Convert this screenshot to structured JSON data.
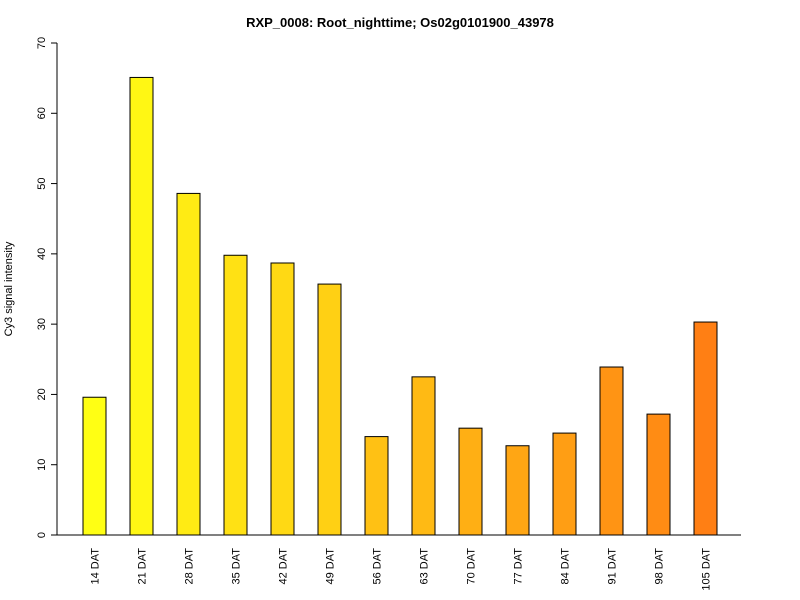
{
  "chart_data": {
    "type": "bar",
    "title": "RXP_0008: Root_nighttime; Os02g0101900_43978",
    "xlabel": "",
    "ylabel": "Cy3 signal intensity",
    "ylim": [
      0,
      70
    ],
    "yticks": [
      0,
      10,
      20,
      30,
      40,
      50,
      60,
      70
    ],
    "categories": [
      "14 DAT",
      "21 DAT",
      "28 DAT",
      "35 DAT",
      "42 DAT",
      "49 DAT",
      "56 DAT",
      "63 DAT",
      "70 DAT",
      "77 DAT",
      "84 DAT",
      "91 DAT",
      "98 DAT",
      "105 DAT"
    ],
    "values": [
      19.6,
      65.1,
      48.6,
      39.8,
      38.7,
      35.7,
      14.0,
      22.5,
      15.2,
      12.7,
      14.5,
      23.9,
      17.2,
      30.3
    ],
    "colors": [
      "#FFFF14",
      "#FFF714",
      "#FFEB14",
      "#FFE114",
      "#FFD914",
      "#FFD014",
      "#FFC114",
      "#FFBA14",
      "#FFAF14",
      "#FFA614",
      "#FF9E14",
      "#FF9414",
      "#FF8C14",
      "#FF7F14"
    ],
    "grid": false,
    "legend": "none"
  }
}
